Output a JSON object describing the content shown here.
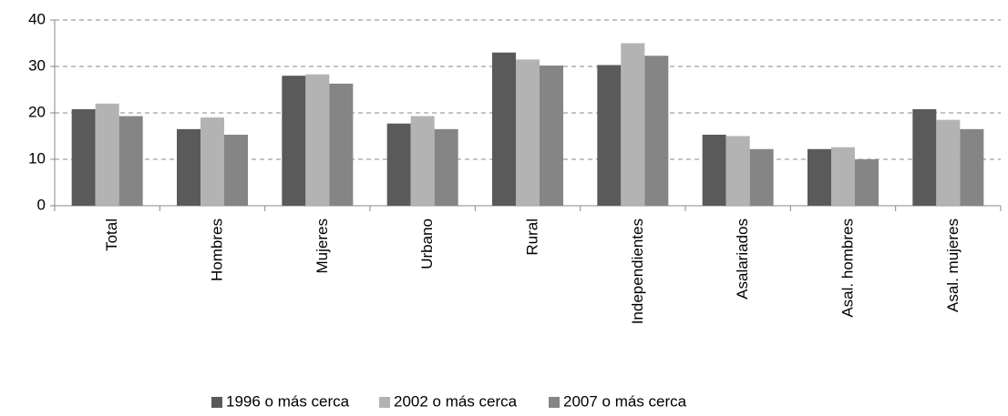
{
  "chart_data": {
    "type": "bar",
    "categories": [
      "Total",
      "Hombres",
      "Mujeres",
      "Urbano",
      "Rural",
      "Independientes",
      "Asalariados",
      "Asal. hombres",
      "Asal. mujeres"
    ],
    "series": [
      {
        "name": "1996 o más cerca",
        "color": "#5a5a5a",
        "values": [
          20.8,
          16.5,
          28,
          17.7,
          33,
          30.3,
          15.3,
          12.2,
          20.8
        ]
      },
      {
        "name": "2002 o más cerca",
        "color": "#b3b3b3",
        "values": [
          22,
          19,
          28.3,
          19.3,
          31.5,
          35,
          15,
          12.6,
          18.5
        ]
      },
      {
        "name": "2007 o más cerca",
        "color": "#858585",
        "values": [
          19.3,
          15.3,
          26.3,
          16.5,
          30.2,
          32.3,
          12.2,
          10,
          16.5
        ]
      }
    ],
    "ylim": [
      0,
      40
    ],
    "yticks": [
      0,
      10,
      20,
      30,
      40
    ],
    "grid": true,
    "legend": "bottom"
  }
}
